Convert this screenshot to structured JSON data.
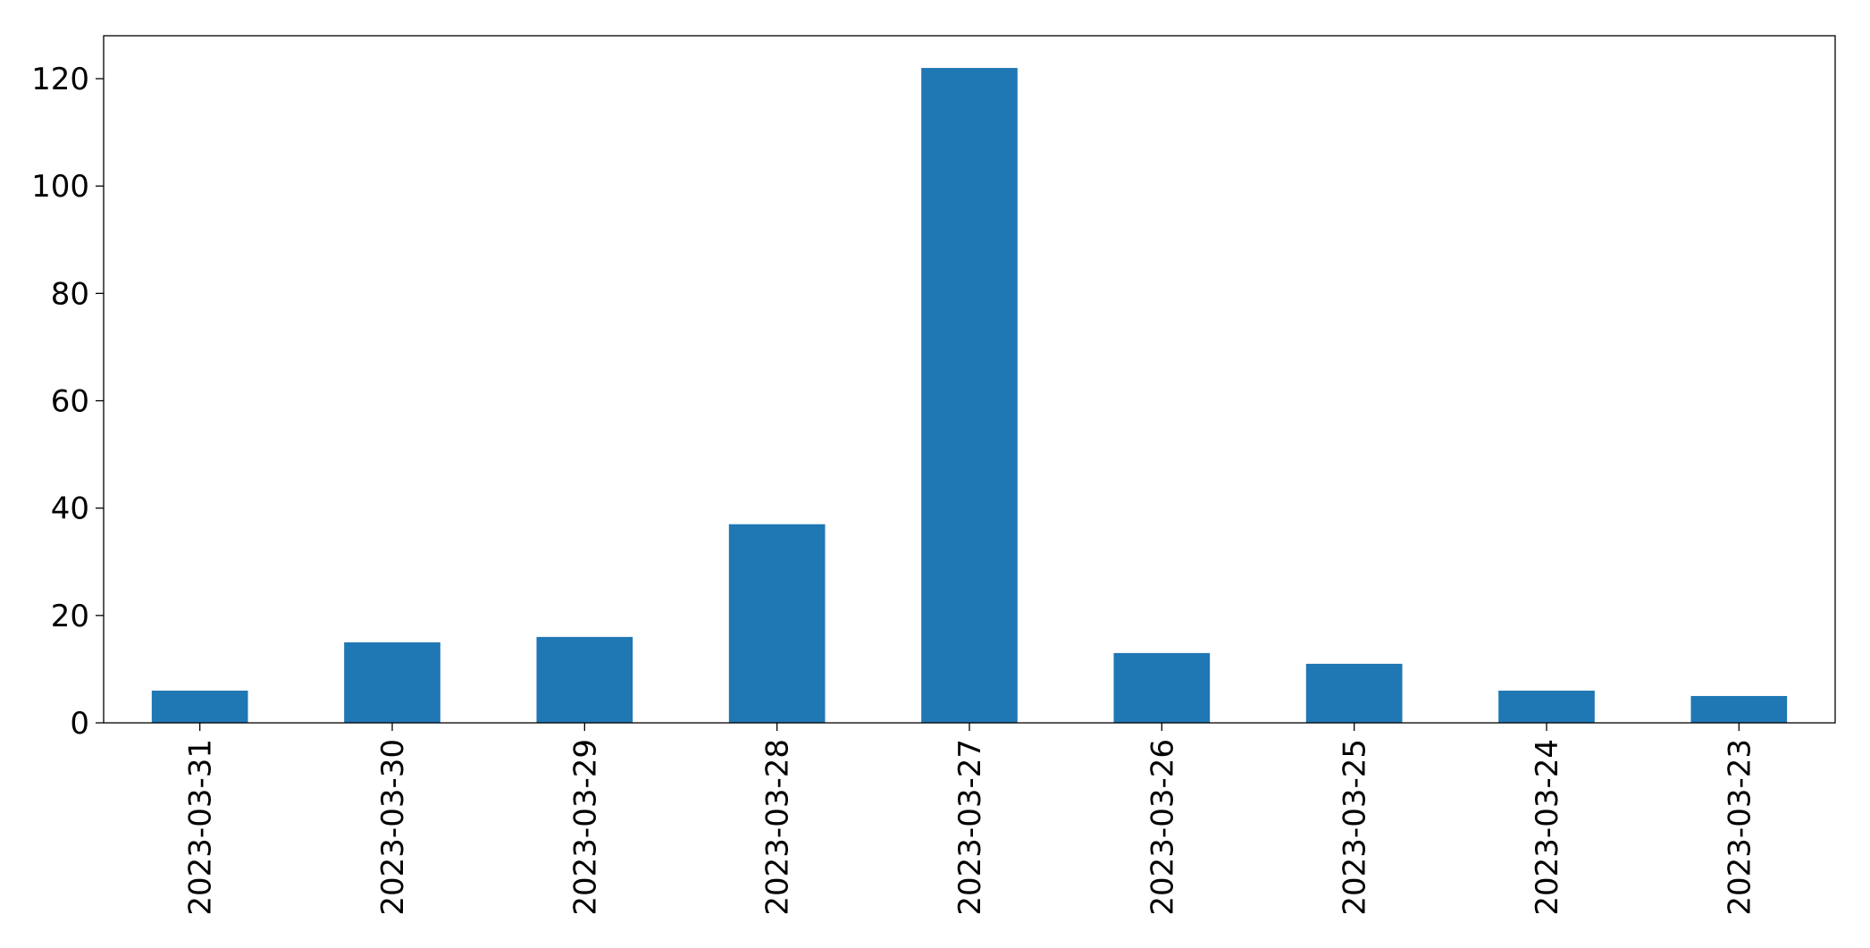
{
  "chart_data": {
    "type": "bar",
    "categories": [
      "2023-03-31",
      "2023-03-30",
      "2023-03-29",
      "2023-03-28",
      "2023-03-27",
      "2023-03-26",
      "2023-03-25",
      "2023-03-24",
      "2023-03-23"
    ],
    "values": [
      6,
      15,
      16,
      37,
      122,
      13,
      11,
      6,
      5
    ],
    "color": "#1f77b4",
    "ylim": [
      0,
      128
    ],
    "yticks": [
      0,
      20,
      40,
      60,
      80,
      100,
      120
    ],
    "grid": false
  }
}
